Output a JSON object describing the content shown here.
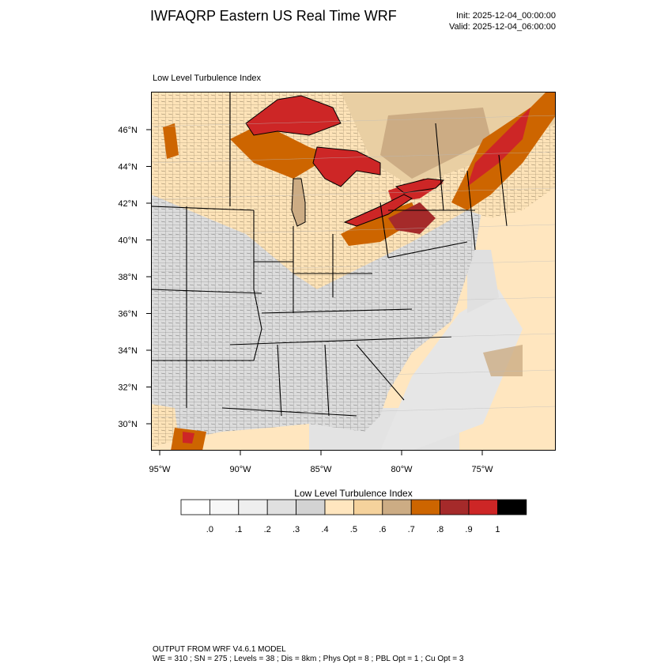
{
  "header": {
    "title": "IWFAQRP Eastern US Real Time WRF",
    "init": "Init: 2025-12-04_00:00:00",
    "valid": "Valid: 2025-12-04_06:00:00"
  },
  "map": {
    "field_title": "Low Level Turbulence Index",
    "lat_labels": [
      "46°N",
      "44°N",
      "42°N",
      "40°N",
      "38°N",
      "36°N",
      "34°N",
      "32°N",
      "30°N"
    ],
    "lon_labels": [
      "95°W",
      "90°W",
      "85°W",
      "80°W",
      "75°W"
    ]
  },
  "colorbar": {
    "title": "Low Level Turbulence Index",
    "colors": [
      "#ffffff",
      "#f7f7f7",
      "#eeeeee",
      "#e0e0e0",
      "#d3d3d3",
      "#ffe6bf",
      "#f5d29c",
      "#ccac84",
      "#cd6500",
      "#a52a2a",
      "#cd2626",
      "#000000"
    ],
    "labels": [
      ".0",
      ".1",
      ".2",
      ".3",
      ".4",
      ".5",
      ".6",
      ".7",
      ".8",
      ".9",
      "1"
    ]
  },
  "footer": {
    "line1": "OUTPUT FROM WRF V4.6.1 MODEL",
    "line2": "WE = 310 ; SN = 275 ; Levels = 38 ; Dis = 8km ; Phys Opt = 8 ; PBL Opt = 1 ; Cu Opt = 3"
  }
}
